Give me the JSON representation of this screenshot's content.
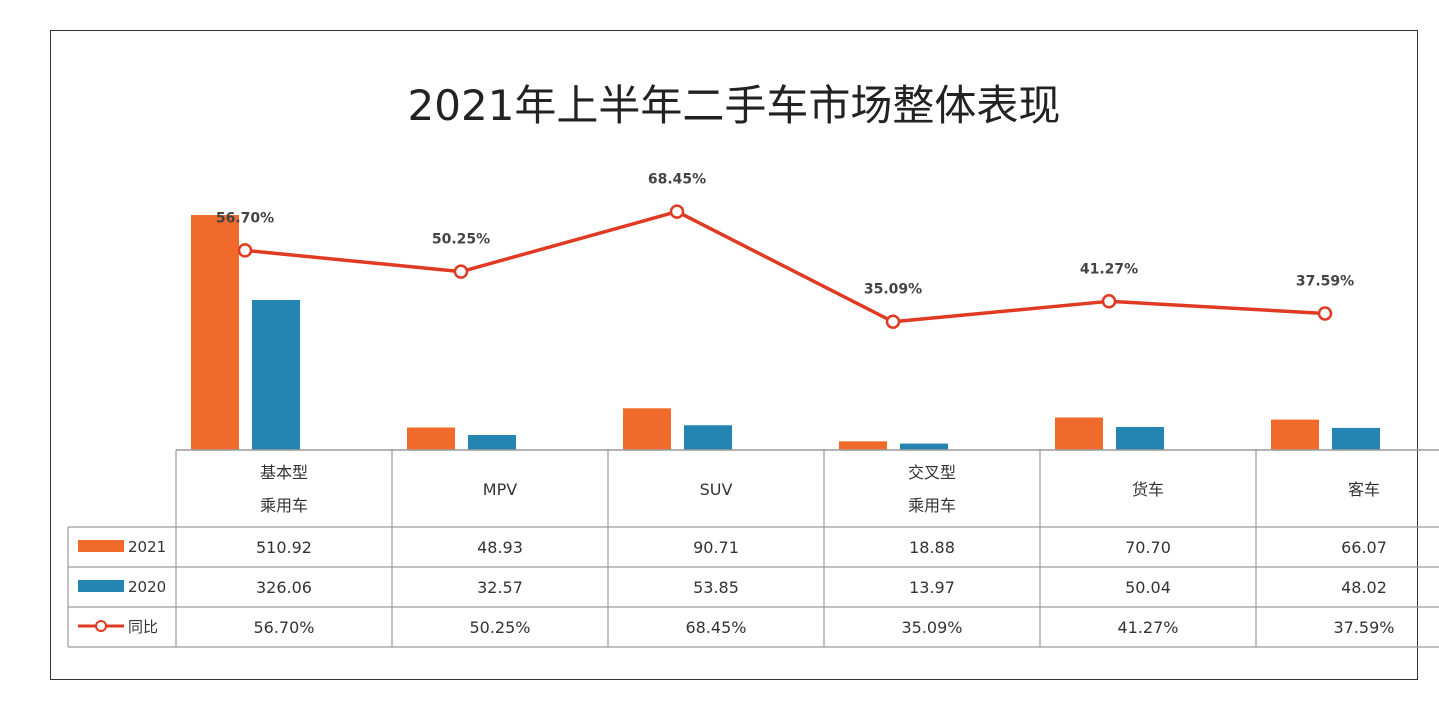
{
  "chart_data": {
    "type": "bar",
    "title": "2021年上半年二手车市场整体表现",
    "categories": [
      [
        "基本型",
        "乘用车"
      ],
      [
        "MPV"
      ],
      [
        "SUV"
      ],
      [
        "交叉型",
        "乘用车"
      ],
      [
        "货车"
      ],
      [
        "客车"
      ]
    ],
    "series": [
      {
        "name": "2021",
        "type": "bar",
        "color": "#ef6a2b",
        "values": [
          510.92,
          48.93,
          90.71,
          18.88,
          70.7,
          66.07
        ],
        "labels": [
          "510.92",
          "48.93",
          "90.71",
          "18.88",
          "70.70",
          "66.07"
        ]
      },
      {
        "name": "2020",
        "type": "bar",
        "color": "#2585b2",
        "values": [
          326.06,
          32.57,
          53.85,
          13.97,
          50.04,
          48.02
        ],
        "labels": [
          "326.06",
          "32.57",
          "53.85",
          "13.97",
          "50.04",
          "48.02"
        ]
      },
      {
        "name": "同比",
        "type": "line",
        "color": "#e03a22",
        "values": [
          56.7,
          50.25,
          68.45,
          35.09,
          41.27,
          37.59
        ],
        "labels": [
          "56.70%",
          "50.25%",
          "68.45%",
          "35.09%",
          "41.27%",
          "37.59%"
        ]
      }
    ],
    "legend_placement": "table-left",
    "grid": false
  }
}
